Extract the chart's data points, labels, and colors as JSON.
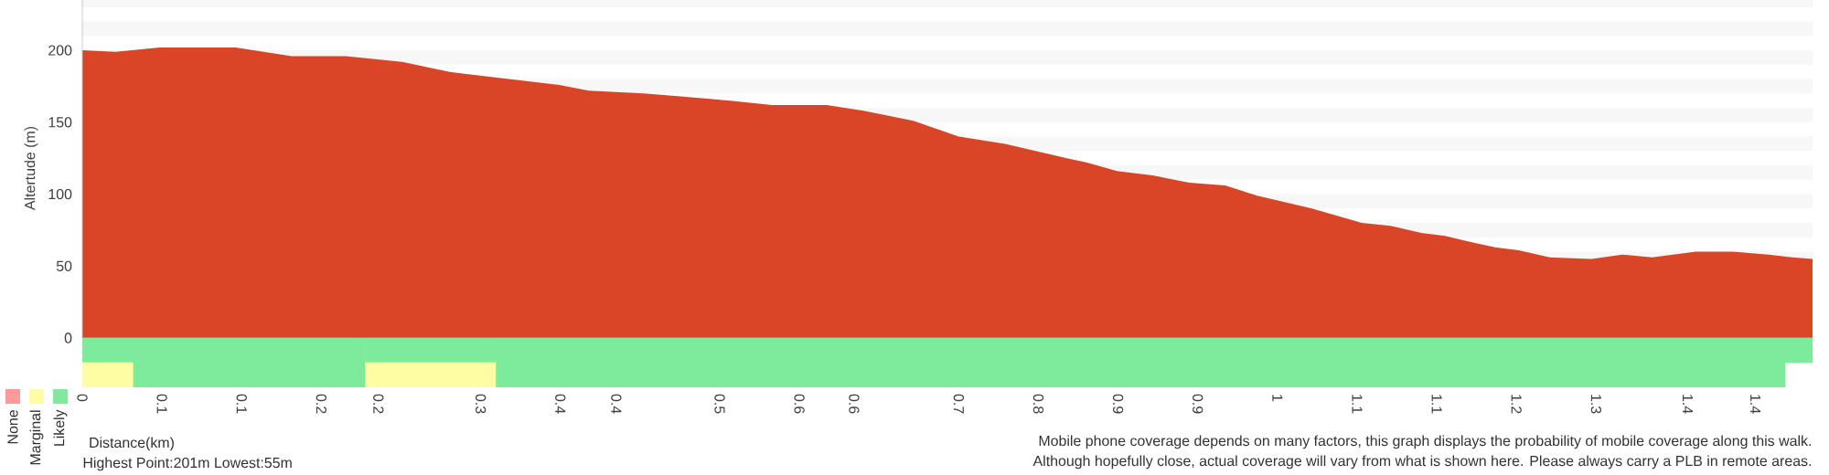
{
  "chart_data": [
    {
      "type": "area",
      "ylabel": "Altertude (m)",
      "x": [
        0,
        0.028,
        0.065,
        0.129,
        0.176,
        0.222,
        0.269,
        0.309,
        0.349,
        0.401,
        0.426,
        0.472,
        0.503,
        0.545,
        0.58,
        0.626,
        0.657,
        0.699,
        0.737,
        0.776,
        0.828,
        0.845,
        0.87,
        0.9,
        0.931,
        0.961,
        0.988,
        1.034,
        1.076,
        1.1,
        1.126,
        1.146,
        1.166,
        1.188,
        1.208,
        1.234,
        1.269,
        1.295,
        1.32,
        1.357,
        1.388,
        1.418,
        1.438,
        1.455
      ],
      "series": [
        {
          "color": "#d94627",
          "values": [
            200,
            199,
            202,
            202,
            196,
            196,
            192,
            185,
            181,
            176,
            172,
            170,
            168,
            165,
            162,
            162,
            158,
            151,
            140,
            135,
            125,
            122,
            116,
            113,
            108,
            106,
            99,
            90,
            80,
            78,
            73,
            71,
            67,
            63,
            61,
            56,
            55,
            58,
            56,
            60,
            60,
            58,
            56,
            55
          ]
        }
      ],
      "xlim": [
        0,
        1.455
      ],
      "ylim": [
        0,
        235
      ],
      "yticks": [
        0,
        50,
        100,
        150,
        200
      ],
      "tick_labels": "y",
      "bands": [
        {
          "axis": "y",
          "from": 50,
          "to": 60,
          "color": "#f7f7f7"
        },
        {
          "axis": "y",
          "from": 70,
          "to": 80,
          "color": "#f7f7f7"
        },
        {
          "axis": "y",
          "from": 90,
          "to": 100,
          "color": "#f7f7f7"
        },
        {
          "axis": "y",
          "from": 110,
          "to": 120,
          "color": "#f7f7f7"
        },
        {
          "axis": "y",
          "from": 130,
          "to": 140,
          "color": "#f7f7f7"
        },
        {
          "axis": "y",
          "from": 150,
          "to": 160,
          "color": "#f7f7f7"
        },
        {
          "axis": "y",
          "from": 170,
          "to": 180,
          "color": "#f7f7f7"
        },
        {
          "axis": "y",
          "from": 190,
          "to": 200,
          "color": "#f7f7f7"
        },
        {
          "axis": "y",
          "from": 210,
          "to": 220,
          "color": "#f7f7f7"
        },
        {
          "axis": "y",
          "from": 230,
          "to": 235,
          "color": "#f7f7f7"
        }
      ]
    },
    {
      "type": "bar",
      "orientation": "horizontal",
      "stacked": true,
      "categories": [
        null,
        null
      ],
      "xlabel": "Distance(km)",
      "series": [
        {
          "colors": [
            "#7deb9b",
            "#fffda3"
          ],
          "values": [
            0.043,
            0.043
          ]
        },
        {
          "colors": [
            "#7deb9b",
            "#7deb9b"
          ],
          "values": [
            0.195,
            0.195
          ]
        },
        {
          "colors": [
            "#7deb9b",
            "#fffda3"
          ],
          "values": [
            0.11,
            0.11
          ]
        },
        {
          "colors": [
            "#7deb9b",
            "#7deb9b"
          ],
          "values": [
            1.107,
            1.084
          ]
        },
        {
          "name": "None",
          "color": "#ff9a9a",
          "values": [
            null,
            null
          ]
        },
        {
          "name": "Marginal",
          "color": "#fffda3",
          "values": [
            null,
            null
          ]
        },
        {
          "name": "Likely",
          "color": "#7deb9b",
          "values": [
            null,
            null
          ]
        }
      ],
      "xlim": [
        0,
        1.455
      ],
      "xticks": [
        {
          "value": 0,
          "label": "0"
        },
        {
          "value": 0.067,
          "label": "0.1"
        },
        {
          "value": 0.134,
          "label": "0.1"
        },
        {
          "value": 0.201,
          "label": "0.2"
        },
        {
          "value": 0.249,
          "label": "0.2"
        },
        {
          "value": 0.335,
          "label": "0.3"
        },
        {
          "value": 0.402,
          "label": "0.4"
        },
        {
          "value": 0.449,
          "label": "0.4"
        },
        {
          "value": 0.536,
          "label": "0.5"
        },
        {
          "value": 0.603,
          "label": "0.6"
        },
        {
          "value": 0.649,
          "label": "0.6"
        },
        {
          "value": 0.737,
          "label": "0.7"
        },
        {
          "value": 0.804,
          "label": "0.8"
        },
        {
          "value": 0.871,
          "label": "0.9"
        },
        {
          "value": 0.938,
          "label": "0.9"
        },
        {
          "value": 1.005,
          "label": "1"
        },
        {
          "value": 1.072,
          "label": "1.1"
        },
        {
          "value": 1.139,
          "label": "1.1"
        },
        {
          "value": 1.206,
          "label": "1.2"
        },
        {
          "value": 1.273,
          "label": "1.3"
        },
        {
          "value": 1.35,
          "label": "1.4"
        },
        {
          "value": 1.407,
          "label": "1.4"
        }
      ],
      "tick_labels": "x",
      "legend": "bottom left",
      "annotations": [
        "Highest Point:201m Lowest:55m",
        "Mobile phone coverage depends on many factors, this graph displays the probability of mobile coverage along this walk.",
        "Although hopefully close, actual coverage will vary from what is shown here. Please always carry a PLB in remote areas."
      ]
    }
  ]
}
